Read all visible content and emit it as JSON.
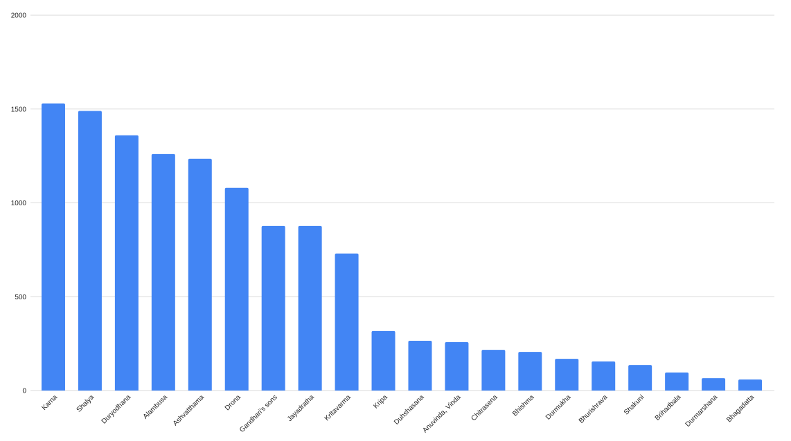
{
  "chart_data": {
    "type": "bar",
    "categories": [
      "Karna",
      "Shalya",
      "Duryodhana",
      "Alambusa",
      "Ashvatthama",
      "Drona",
      "Gandhari's sons",
      "Jayadratha",
      "Kritavarma",
      "Kripa",
      "Duhshasana",
      "Anuvinda, Vinda",
      "Chitrasena",
      "Bhishma",
      "Durmukha",
      "Bhurishrava",
      "Shakuni",
      "Brihadbala",
      "Durmarshana",
      "Bhagadatta"
    ],
    "values": [
      1530,
      1490,
      1360,
      1260,
      1235,
      1080,
      877,
      877,
      730,
      317,
      265,
      258,
      217,
      206,
      169,
      155,
      136,
      96,
      66,
      59
    ],
    "color": "#4285f4",
    "ylim": [
      0,
      2000
    ],
    "yticks": [
      0,
      500,
      1000,
      1500,
      2000
    ],
    "grid": true
  }
}
